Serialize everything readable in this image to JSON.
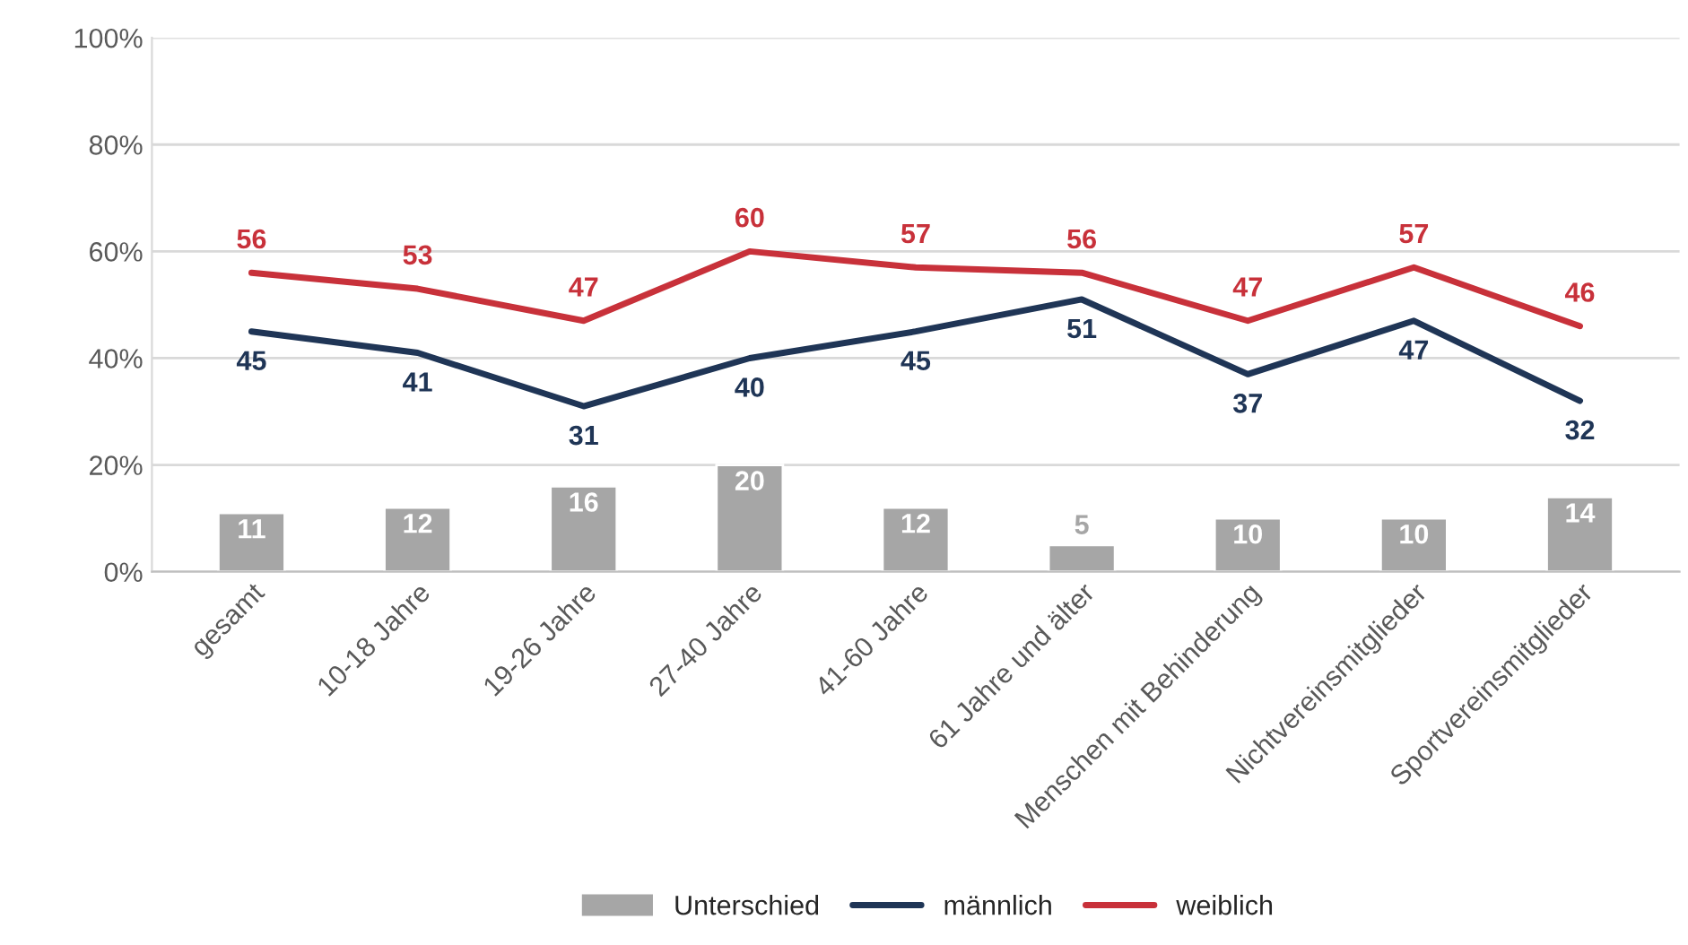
{
  "chart_data": {
    "type": "line",
    "categories": [
      "gesamt",
      "10-18 Jahre",
      "19-26 Jahre",
      "27-40 Jahre",
      "41-60 Jahre",
      "61 Jahre und älter",
      "Menschen mit Behinderung",
      "Nichtvereinsmitglieder",
      "Sportvereinsmitglieder"
    ],
    "series": [
      {
        "name": "Unterschied",
        "type": "bar",
        "color": "#a6a6a6",
        "values": [
          11,
          12,
          16,
          20,
          12,
          5,
          10,
          10,
          14
        ]
      },
      {
        "name": "männlich",
        "color": "#1f3556",
        "values": [
          45,
          41,
          31,
          40,
          45,
          51,
          37,
          47,
          32
        ]
      },
      {
        "name": "weiblich",
        "color": "#c8313a",
        "values": [
          56,
          53,
          47,
          60,
          57,
          56,
          47,
          57,
          46
        ]
      }
    ],
    "ylim": [
      0,
      100
    ],
    "yticks": [
      {
        "value": 0,
        "label": "0%"
      },
      {
        "value": 20,
        "label": "20%"
      },
      {
        "value": 40,
        "label": "40%"
      },
      {
        "value": 60,
        "label": "60%"
      },
      {
        "value": 80,
        "label": "80%"
      },
      {
        "value": 100,
        "label": "100%"
      }
    ],
    "grid": "y",
    "legend": "bottom",
    "data_labels": true,
    "marker": "none",
    "line_style": "solid"
  }
}
